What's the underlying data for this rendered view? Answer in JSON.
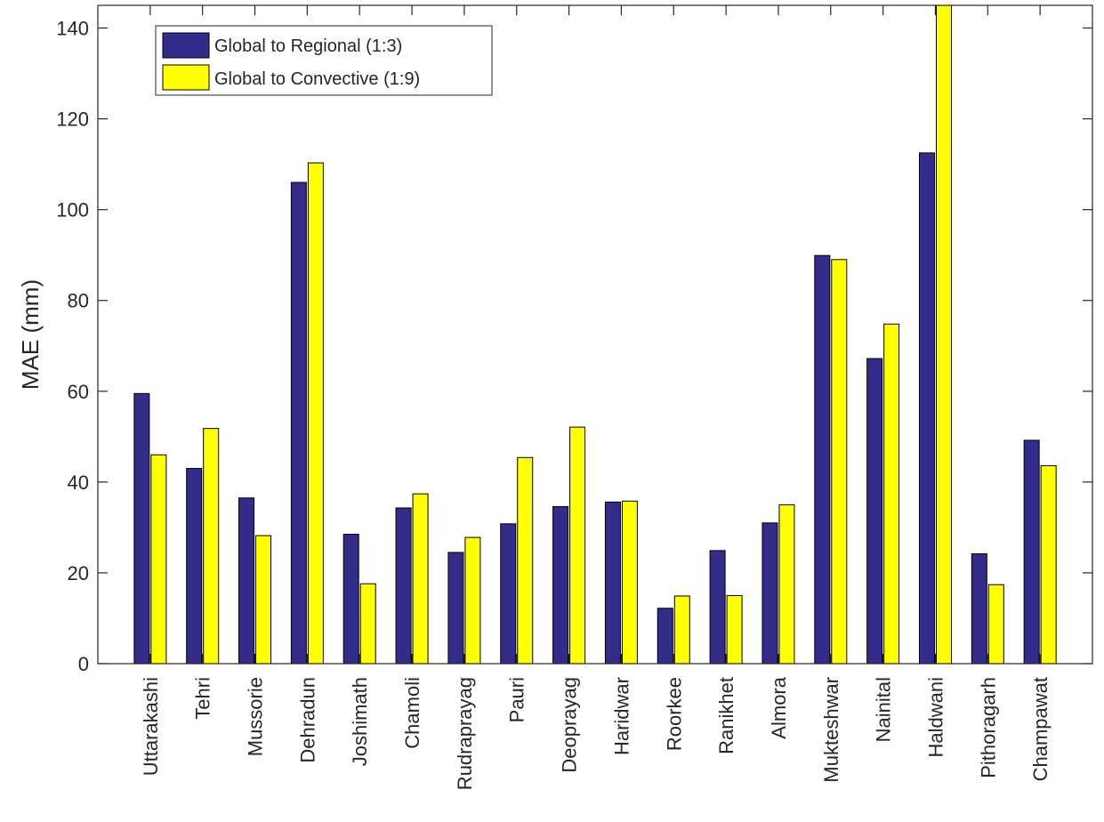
{
  "chart_data": {
    "type": "bar",
    "title": "",
    "xlabel": "",
    "ylabel": "MAE (mm)",
    "ylim": [
      0,
      145
    ],
    "yticks": [
      0,
      20,
      40,
      60,
      80,
      100,
      120,
      140
    ],
    "ytick_labels": [
      "0",
      "20",
      "40",
      "60",
      "80",
      "100",
      "120",
      "140"
    ],
    "grid": false,
    "legend_position": "top-left",
    "categories": [
      "Uttarakashi",
      "Tehri",
      "Mussorie",
      "Dehradun",
      "Joshimath",
      "Chamoli",
      "Rudraprayag",
      "Pauri",
      "Deoprayag",
      "Haridwar",
      "Roorkee",
      "Ranikhet",
      "Almora",
      "Mukteshwar",
      "Nainital",
      "Haldwani",
      "Pithoragarh",
      "Champawat"
    ],
    "series": [
      {
        "name": "Global to Regional (1:3)",
        "color": "#332c8a",
        "values": [
          59.5,
          43,
          36.5,
          106,
          28.5,
          34.3,
          24.5,
          30.8,
          34.6,
          35.6,
          12.2,
          24.9,
          31,
          89.9,
          67.2,
          112.5,
          24.2,
          49.2
        ]
      },
      {
        "name": "Global to Convective (1:9)",
        "color": "#ffff00",
        "values": [
          46,
          51.8,
          28.2,
          110.3,
          17.6,
          37.4,
          27.8,
          45.4,
          52.1,
          35.8,
          14.9,
          15,
          35,
          89,
          74.8,
          145,
          17.4,
          43.6
        ]
      }
    ]
  }
}
